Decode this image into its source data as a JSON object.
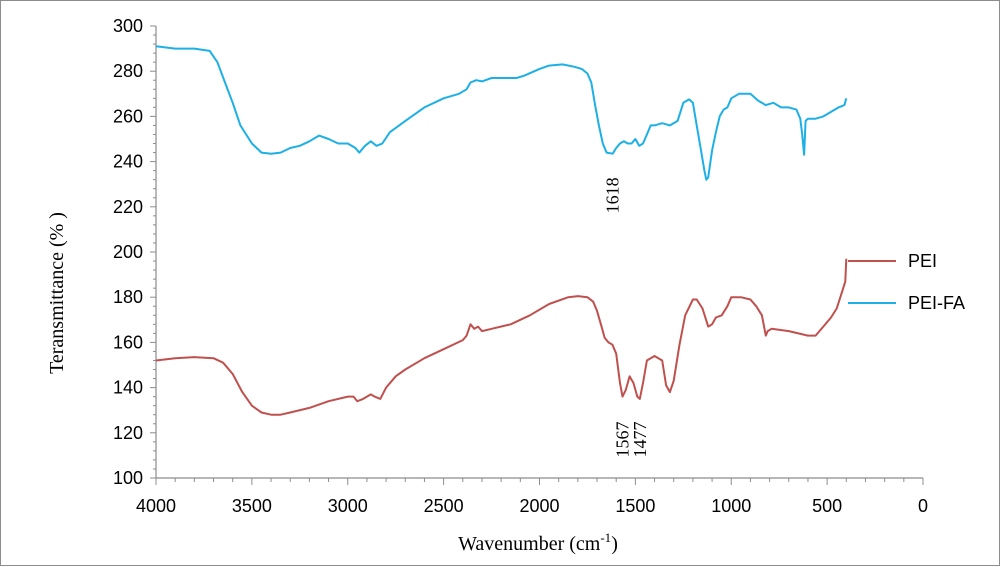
{
  "chart_data": {
    "type": "line",
    "xlabel": "Wavenumber (cm",
    "xlabel_sup": "-1",
    "xlabel_end": ")",
    "ylabel": "Teransmittance (% )",
    "xlim": [
      4000,
      0
    ],
    "ylim": [
      100,
      300
    ],
    "x_ticks": [
      "4000",
      "3500",
      "3000",
      "2500",
      "2000",
      "1500",
      "1000",
      "500",
      "0"
    ],
    "y_ticks": [
      "100",
      "120",
      "140",
      "160",
      "180",
      "200",
      "220",
      "240",
      "260",
      "280",
      "300"
    ],
    "grid": false,
    "legend_position": "right",
    "series": [
      {
        "name": "PEI",
        "color": "#c0504d",
        "points": [
          [
            4000,
            152
          ],
          [
            3900,
            153
          ],
          [
            3800,
            153.5
          ],
          [
            3700,
            153
          ],
          [
            3650,
            151
          ],
          [
            3600,
            146
          ],
          [
            3550,
            138
          ],
          [
            3500,
            132
          ],
          [
            3450,
            129
          ],
          [
            3400,
            128
          ],
          [
            3350,
            128
          ],
          [
            3300,
            129
          ],
          [
            3200,
            131
          ],
          [
            3100,
            134
          ],
          [
            3000,
            136
          ],
          [
            2970,
            136
          ],
          [
            2950,
            134
          ],
          [
            2920,
            135
          ],
          [
            2880,
            137
          ],
          [
            2860,
            136
          ],
          [
            2830,
            135
          ],
          [
            2800,
            140
          ],
          [
            2750,
            145
          ],
          [
            2700,
            148
          ],
          [
            2600,
            153
          ],
          [
            2500,
            157
          ],
          [
            2400,
            161
          ],
          [
            2380,
            163
          ],
          [
            2360,
            168
          ],
          [
            2340,
            166
          ],
          [
            2320,
            167
          ],
          [
            2300,
            165
          ],
          [
            2250,
            166
          ],
          [
            2150,
            168
          ],
          [
            2050,
            172
          ],
          [
            1950,
            177
          ],
          [
            1850,
            180
          ],
          [
            1800,
            180.5
          ],
          [
            1750,
            180
          ],
          [
            1720,
            178
          ],
          [
            1700,
            174
          ],
          [
            1680,
            168
          ],
          [
            1660,
            162
          ],
          [
            1640,
            160
          ],
          [
            1620,
            159
          ],
          [
            1600,
            155
          ],
          [
            1580,
            142
          ],
          [
            1567,
            136
          ],
          [
            1550,
            139
          ],
          [
            1530,
            145
          ],
          [
            1510,
            142
          ],
          [
            1490,
            136
          ],
          [
            1477,
            135
          ],
          [
            1460,
            142
          ],
          [
            1440,
            152
          ],
          [
            1400,
            154
          ],
          [
            1360,
            152
          ],
          [
            1340,
            141
          ],
          [
            1320,
            138
          ],
          [
            1300,
            143
          ],
          [
            1270,
            159
          ],
          [
            1240,
            172
          ],
          [
            1200,
            179
          ],
          [
            1180,
            179
          ],
          [
            1150,
            175
          ],
          [
            1120,
            167
          ],
          [
            1100,
            168
          ],
          [
            1080,
            171
          ],
          [
            1050,
            172
          ],
          [
            1020,
            176
          ],
          [
            1000,
            180
          ],
          [
            950,
            180
          ],
          [
            900,
            179
          ],
          [
            870,
            176
          ],
          [
            840,
            172
          ],
          [
            820,
            163
          ],
          [
            810,
            165
          ],
          [
            790,
            166
          ],
          [
            700,
            165
          ],
          [
            650,
            164
          ],
          [
            600,
            163
          ],
          [
            560,
            163
          ],
          [
            520,
            167
          ],
          [
            480,
            171
          ],
          [
            450,
            175
          ],
          [
            420,
            183
          ],
          [
            405,
            187
          ],
          [
            400,
            197
          ]
        ]
      },
      {
        "name": "PEI-FA",
        "color": "#1cb0e6",
        "points": [
          [
            4000,
            291
          ],
          [
            3900,
            290
          ],
          [
            3800,
            290
          ],
          [
            3720,
            289
          ],
          [
            3680,
            284
          ],
          [
            3640,
            275
          ],
          [
            3600,
            266
          ],
          [
            3560,
            256
          ],
          [
            3500,
            248
          ],
          [
            3450,
            244
          ],
          [
            3400,
            243.5
          ],
          [
            3350,
            244
          ],
          [
            3300,
            246
          ],
          [
            3250,
            247
          ],
          [
            3200,
            249
          ],
          [
            3150,
            251.5
          ],
          [
            3100,
            250
          ],
          [
            3050,
            248
          ],
          [
            3000,
            248
          ],
          [
            2960,
            246
          ],
          [
            2940,
            244
          ],
          [
            2910,
            247
          ],
          [
            2880,
            249
          ],
          [
            2850,
            247
          ],
          [
            2820,
            248
          ],
          [
            2780,
            253
          ],
          [
            2700,
            258
          ],
          [
            2600,
            264
          ],
          [
            2500,
            268
          ],
          [
            2420,
            270
          ],
          [
            2380,
            272
          ],
          [
            2360,
            275
          ],
          [
            2330,
            276
          ],
          [
            2300,
            275.5
          ],
          [
            2250,
            277
          ],
          [
            2200,
            277
          ],
          [
            2120,
            277
          ],
          [
            2080,
            278
          ],
          [
            2000,
            281
          ],
          [
            1950,
            282.5
          ],
          [
            1880,
            283
          ],
          [
            1820,
            282
          ],
          [
            1780,
            281
          ],
          [
            1750,
            279
          ],
          [
            1730,
            275
          ],
          [
            1710,
            265
          ],
          [
            1690,
            256
          ],
          [
            1670,
            248
          ],
          [
            1650,
            244
          ],
          [
            1618,
            243.5
          ],
          [
            1600,
            246
          ],
          [
            1580,
            248
          ],
          [
            1560,
            249
          ],
          [
            1540,
            248
          ],
          [
            1520,
            248
          ],
          [
            1500,
            250
          ],
          [
            1480,
            247
          ],
          [
            1460,
            248
          ],
          [
            1440,
            252
          ],
          [
            1420,
            256
          ],
          [
            1400,
            256
          ],
          [
            1360,
            257
          ],
          [
            1320,
            256
          ],
          [
            1280,
            258
          ],
          [
            1250,
            266
          ],
          [
            1220,
            267.5
          ],
          [
            1200,
            266
          ],
          [
            1180,
            256
          ],
          [
            1160,
            246
          ],
          [
            1140,
            236
          ],
          [
            1130,
            232
          ],
          [
            1120,
            233
          ],
          [
            1100,
            245
          ],
          [
            1080,
            253
          ],
          [
            1060,
            260
          ],
          [
            1040,
            263
          ],
          [
            1020,
            264
          ],
          [
            1000,
            268
          ],
          [
            960,
            270
          ],
          [
            900,
            270
          ],
          [
            860,
            267
          ],
          [
            820,
            265
          ],
          [
            780,
            266
          ],
          [
            740,
            264
          ],
          [
            700,
            264
          ],
          [
            660,
            263
          ],
          [
            640,
            259
          ],
          [
            630,
            252
          ],
          [
            620,
            243
          ],
          [
            612,
            258
          ],
          [
            600,
            259
          ],
          [
            560,
            259
          ],
          [
            520,
            260
          ],
          [
            480,
            262
          ],
          [
            440,
            264
          ],
          [
            410,
            265
          ],
          [
            400,
            268
          ]
        ]
      }
    ],
    "annotations": [
      {
        "text": "1618",
        "x": 1618,
        "y": 233
      },
      {
        "text": "1567",
        "x": 1567,
        "y": 125
      },
      {
        "text": "1477",
        "x": 1477,
        "y": 125
      }
    ]
  }
}
